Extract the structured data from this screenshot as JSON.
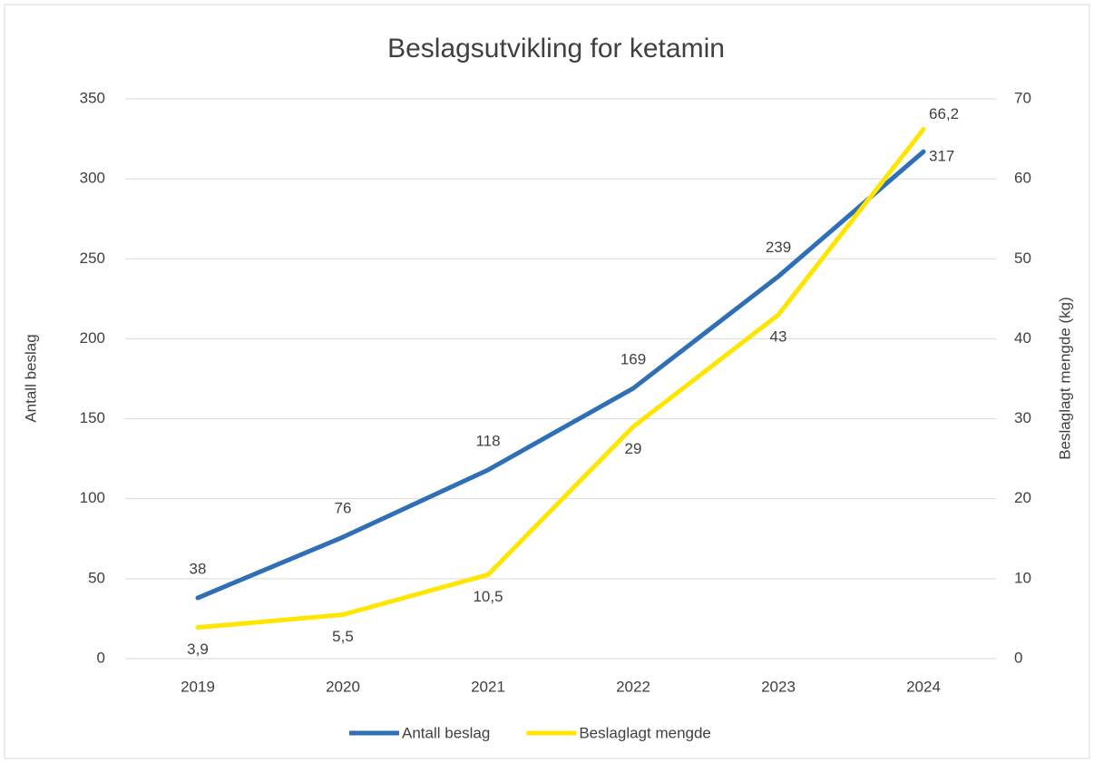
{
  "chart_data": {
    "type": "line",
    "title": "Beslagsutvikling for ketamin",
    "categories": [
      "2019",
      "2020",
      "2021",
      "2022",
      "2023",
      "2024"
    ],
    "y_label": "Antall beslag",
    "y2_label": "Beslaglagt mengde (kg)",
    "ylim": [
      0,
      350
    ],
    "yticks": [
      0,
      50,
      100,
      150,
      200,
      250,
      300,
      350
    ],
    "y2lim": [
      0,
      70
    ],
    "y2ticks": [
      0,
      10,
      20,
      30,
      40,
      50,
      60,
      70
    ],
    "grid": true,
    "legend": "bottom",
    "series": [
      {
        "name": "Antall beslag",
        "color": "#2f6fb5",
        "values": [
          38,
          76,
          118,
          169,
          239,
          317
        ]
      },
      {
        "name": "Beslaglagt mengde",
        "color": "#ffe600",
        "axis": "y2",
        "values": [
          3.9,
          5.5,
          10.5,
          29,
          43,
          66.2
        ],
        "value_labels": [
          "3,9",
          "5,5",
          "10,5",
          "29",
          "43",
          "66,2"
        ]
      }
    ]
  }
}
